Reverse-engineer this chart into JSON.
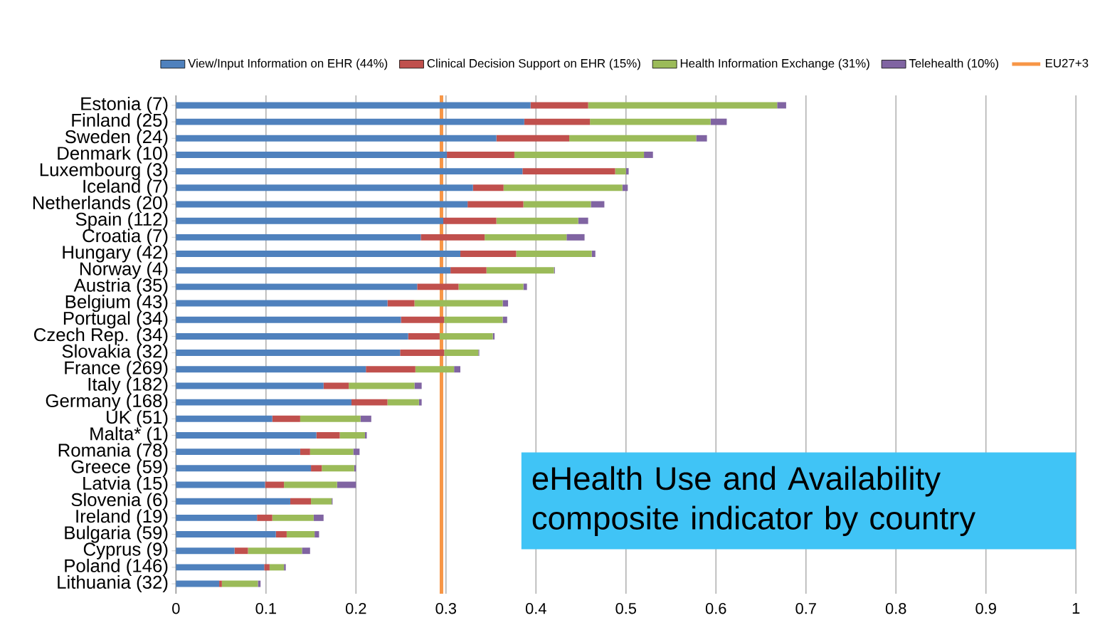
{
  "chart_data": {
    "type": "bar",
    "orientation": "horizontal",
    "stacked": true,
    "categories": [
      "Estonia (7)",
      "Finland (25)",
      "Sweden (24)",
      "Denmark (10)",
      "Luxembourg (3)",
      "Iceland (7)",
      "Netherlands (20)",
      "Spain (112)",
      "Croatia (7)",
      "Hungary (42)",
      "Norway (4)",
      "Austria (35)",
      "Belgium (43)",
      "Portugal (34)",
      "Czech Rep. (34)",
      "Slovakia (32)",
      "France (269)",
      "Italy (182)",
      "Germany (168)",
      "UK (51)",
      "Malta* (1)",
      "Romania (78)",
      "Greece (59)",
      "Latvia (15)",
      "Slovenia (6)",
      "Ireland (19)",
      "Bulgaria (59)",
      "Cyprus (9)",
      "Poland (146)",
      "Lithuania (32)"
    ],
    "series": [
      {
        "name": "View/Input Information on EHR (44%)",
        "color": "#4f81bd",
        "values": [
          0.394,
          0.387,
          0.356,
          0.301,
          0.385,
          0.33,
          0.324,
          0.297,
          0.272,
          0.316,
          0.305,
          0.268,
          0.235,
          0.25,
          0.258,
          0.249,
          0.211,
          0.164,
          0.195,
          0.107,
          0.156,
          0.138,
          0.15,
          0.099,
          0.127,
          0.09,
          0.111,
          0.065,
          0.098,
          0.048
        ]
      },
      {
        "name": "Clinical Decision Support on EHR (15%)",
        "color": "#c0504d",
        "values": [
          0.064,
          0.073,
          0.081,
          0.075,
          0.103,
          0.034,
          0.062,
          0.059,
          0.071,
          0.062,
          0.04,
          0.046,
          0.03,
          0.048,
          0.035,
          0.049,
          0.055,
          0.028,
          0.04,
          0.031,
          0.026,
          0.011,
          0.012,
          0.021,
          0.023,
          0.017,
          0.012,
          0.015,
          0.006,
          0.003
        ]
      },
      {
        "name": "Health Information Exchange (31%)",
        "color": "#9bbb59",
        "values": [
          0.21,
          0.134,
          0.141,
          0.144,
          0.012,
          0.132,
          0.075,
          0.091,
          0.091,
          0.084,
          0.075,
          0.072,
          0.098,
          0.065,
          0.059,
          0.038,
          0.043,
          0.073,
          0.035,
          0.067,
          0.028,
          0.048,
          0.036,
          0.059,
          0.023,
          0.046,
          0.031,
          0.06,
          0.016,
          0.04
        ]
      },
      {
        "name": "Telehealth (10%)",
        "color": "#8064a2",
        "values": [
          0.01,
          0.018,
          0.012,
          0.01,
          0.003,
          0.006,
          0.015,
          0.011,
          0.02,
          0.004,
          0.001,
          0.004,
          0.006,
          0.005,
          0.002,
          0.001,
          0.007,
          0.008,
          0.003,
          0.012,
          0.002,
          0.007,
          0.002,
          0.021,
          0.001,
          0.011,
          0.005,
          0.009,
          0.002,
          0.003
        ]
      }
    ],
    "ref_lines": [
      {
        "axis": "x",
        "value": 0.295,
        "label": "EU27+3",
        "color": "#f79646"
      }
    ],
    "xlim": [
      0,
      1
    ],
    "xticks": [
      0,
      0.1,
      0.2,
      0.3,
      0.4,
      0.5,
      0.6,
      0.7,
      0.8,
      0.9,
      1
    ],
    "grid": "x",
    "legend": "top",
    "annotations": [
      "eHealth Use and Availability composite indicator by country"
    ]
  }
}
